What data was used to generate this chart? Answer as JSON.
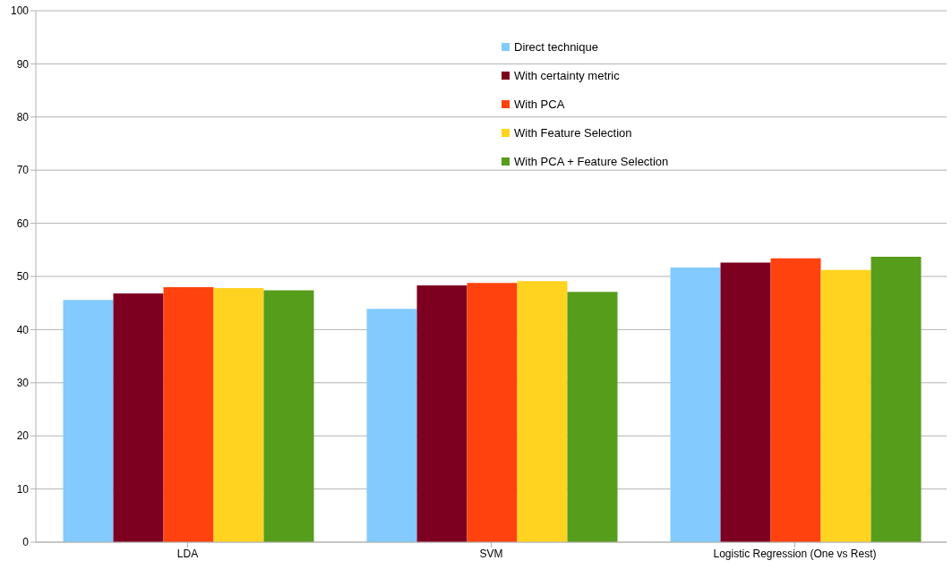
{
  "chart_data": {
    "type": "bar",
    "categories": [
      "LDA",
      "SVM",
      "Logistic Regression (One vs Rest)"
    ],
    "series": [
      {
        "name": "Direct technique",
        "color": "#83caff",
        "values": [
          45.6,
          43.9,
          51.7
        ]
      },
      {
        "name": "With certainty metric",
        "color": "#7e0021",
        "values": [
          46.8,
          48.3,
          52.6
        ]
      },
      {
        "name": "With PCA",
        "color": "#ff420e",
        "values": [
          48.0,
          48.8,
          53.4
        ]
      },
      {
        "name": "With Feature Selection",
        "color": "#ffd320",
        "values": [
          47.8,
          49.1,
          51.2
        ]
      },
      {
        "name": "With PCA + Feature Selection",
        "color": "#579d1c",
        "values": [
          47.4,
          47.1,
          53.7
        ]
      }
    ],
    "ylim": [
      0,
      100
    ],
    "yticks": [
      0,
      10,
      20,
      30,
      40,
      50,
      60,
      70,
      80,
      90,
      100
    ],
    "grid": "y",
    "legend": "top"
  }
}
